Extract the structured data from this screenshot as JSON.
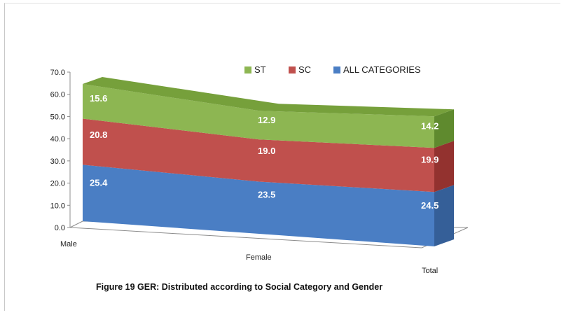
{
  "chart_data": {
    "type": "area",
    "stacked": true,
    "three_d": true,
    "categories": [
      "Male",
      "Female",
      "Total"
    ],
    "series": [
      {
        "name": "ALL CATEGORIES",
        "values": [
          25.4,
          23.5,
          24.5
        ],
        "color": "#4a7ec4",
        "dark": "#355f98",
        "top": "#3f6eac"
      },
      {
        "name": "SC",
        "values": [
          20.8,
          19.0,
          19.9
        ],
        "color": "#c0504d",
        "dark": "#93322f",
        "top": "#a84340"
      },
      {
        "name": "ST",
        "values": [
          15.6,
          12.9,
          14.2
        ],
        "color": "#8db652",
        "dark": "#5f8a2e",
        "top": "#76a03b"
      }
    ],
    "legend_order": [
      "ST",
      "SC",
      "ALL CATEGORIES"
    ],
    "legend_position": "top-center",
    "yticks": [
      "0.0",
      "10.0",
      "20.0",
      "30.0",
      "40.0",
      "50.0",
      "60.0",
      "70.0"
    ],
    "ylim": [
      0,
      70
    ],
    "grid": false
  },
  "caption": "Figure 19 GER: Distributed according to Social Category and Gender"
}
